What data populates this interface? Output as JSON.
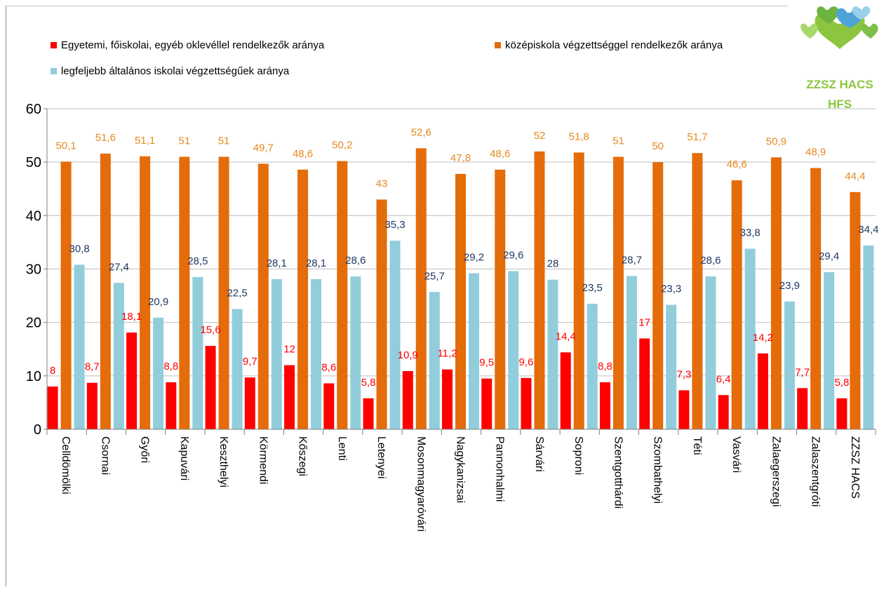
{
  "chart_data": {
    "type": "bar",
    "categories": [
      "Celldömölki",
      "Csornai",
      "Győri",
      "Kapuvári",
      "Keszthelyi",
      "Körmendi",
      "Kőszegi",
      "Lenti",
      "Letenyei",
      "Mosonmagyaróvári",
      "Nagykanizsai",
      "Pannonhalmi",
      "Sárvári",
      "Soproni",
      "Szentgotthárdi",
      "Szombathelyi",
      "Téti",
      "Vasvári",
      "Zalaegerszegi",
      "Zalaszentgróti",
      "ZZSZ HACS"
    ],
    "series": [
      {
        "name": "Egyetemi, főiskolai, egyéb oklevéllel rendelkezők aránya",
        "color": "#ff0000",
        "label_color": "#ff0000",
        "values": [
          8,
          8.7,
          18.1,
          8.8,
          15.6,
          9.7,
          12,
          8.6,
          5.8,
          10.9,
          11.2,
          9.5,
          9.6,
          14.4,
          8.8,
          17,
          7.3,
          6.4,
          14.2,
          7.7,
          5.8
        ],
        "labels": [
          "8",
          "8,7",
          "18,1",
          "8,8",
          "15,6",
          "9,7",
          "12",
          "8,6",
          "5,8",
          "10,9",
          "11,2",
          "9,5",
          "9,6",
          "14,4",
          "8,8",
          "17",
          "7,3",
          "6,4",
          "14,2",
          "7,7",
          "5,8"
        ]
      },
      {
        "name": "középiskola végzettséggel rendelkezők aránya",
        "color": "#e46c0a",
        "label_color": "#e48a1f",
        "values": [
          50.1,
          51.6,
          51.1,
          51,
          51,
          49.7,
          48.6,
          50.2,
          43,
          52.6,
          47.8,
          48.6,
          52,
          51.8,
          51,
          50,
          51.7,
          46.6,
          50.9,
          48.9,
          44.4
        ],
        "labels": [
          "50,1",
          "51,6",
          "51,1",
          "51",
          "51",
          "49,7",
          "48,6",
          "50,2",
          "43",
          "52,6",
          "47,8",
          "48,6",
          "52",
          "51,8",
          "51",
          "50",
          "51,7",
          "46,6",
          "50,9",
          "48,9",
          "44,4"
        ]
      },
      {
        "name": "legfeljebb általános iskolai végzettségűek aránya",
        "color": "#92cddc",
        "label_color": "#1f3864",
        "values": [
          30.8,
          27.4,
          20.9,
          28.5,
          22.5,
          28.1,
          28.1,
          28.6,
          35.3,
          25.7,
          29.2,
          29.6,
          28,
          23.5,
          28.7,
          23.3,
          28.6,
          33.8,
          23.9,
          29.4,
          34.4
        ],
        "labels": [
          "30,8",
          "27,4",
          "20,9",
          "28,5",
          "22,5",
          "28,1",
          "28,1",
          "28,6",
          "35,3",
          "25,7",
          "29,2",
          "29,6",
          "28",
          "23,5",
          "28,7",
          "23,3",
          "28,6",
          "33,8",
          "23,9",
          "29,4",
          "34,4"
        ]
      }
    ],
    "yticks": [
      "0",
      "10",
      "20",
      "30",
      "40",
      "50",
      "60"
    ],
    "ylim": [
      0,
      60
    ],
    "grid": true,
    "legend": "top"
  },
  "logo": {
    "line1": "ZZSZ HACS",
    "line2": "HFS"
  }
}
